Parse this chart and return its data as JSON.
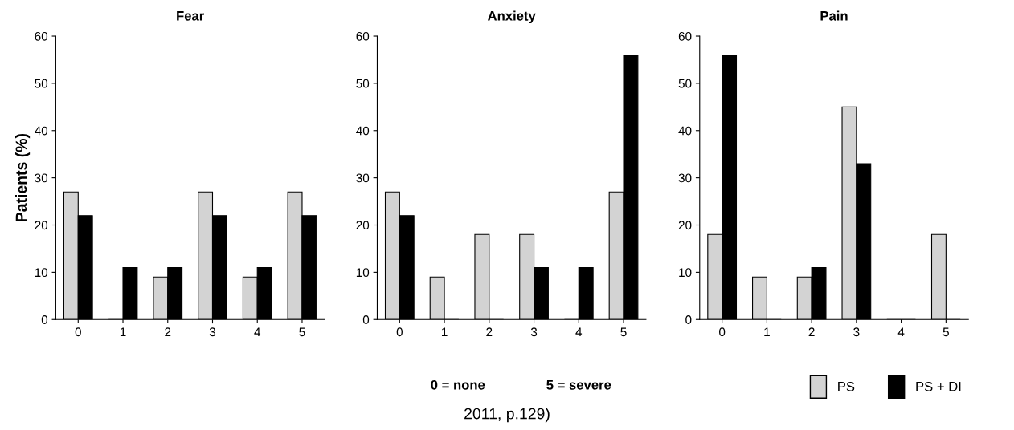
{
  "chart_data": [
    {
      "type": "bar",
      "title": "Fear",
      "ylabel": "Patients (%)",
      "categories": [
        "0",
        "1",
        "2",
        "3",
        "4",
        "5"
      ],
      "ylim": [
        0,
        60
      ],
      "yticks": [
        0,
        10,
        20,
        30,
        40,
        50,
        60
      ],
      "grid": false,
      "legend": false,
      "series": [
        {
          "color": "#d3d3d3",
          "values": [
            27,
            0,
            9,
            27,
            9,
            27
          ]
        },
        {
          "color": "#000000",
          "values": [
            22,
            11,
            11,
            22,
            11,
            22
          ]
        }
      ]
    },
    {
      "type": "bar",
      "title": "Anxiety",
      "categories": [
        "0",
        "1",
        "2",
        "3",
        "4",
        "5"
      ],
      "ylim": [
        0,
        60
      ],
      "yticks": [
        0,
        10,
        20,
        30,
        40,
        50,
        60
      ],
      "grid": false,
      "legend": false,
      "annotations": [
        "0 = none",
        "5 = severe",
        "2011, p.129)"
      ],
      "series": [
        {
          "color": "#d3d3d3",
          "values": [
            27,
            9,
            18,
            18,
            0,
            27
          ]
        },
        {
          "color": "#000000",
          "values": [
            22,
            0,
            0,
            11,
            11,
            56
          ]
        }
      ]
    },
    {
      "type": "bar",
      "title": "Pain",
      "categories": [
        "0",
        "1",
        "2",
        "3",
        "4",
        "5"
      ],
      "ylim": [
        0,
        60
      ],
      "yticks": [
        0,
        10,
        20,
        30,
        40,
        50,
        60
      ],
      "grid": false,
      "legend": "bottom right",
      "series": [
        {
          "name": "PS",
          "color": "#d3d3d3",
          "values": [
            18,
            9,
            9,
            45,
            0,
            18
          ]
        },
        {
          "name": "PS + DI",
          "color": "#000000",
          "values": [
            56,
            0,
            11,
            33,
            0,
            0
          ]
        }
      ]
    }
  ]
}
